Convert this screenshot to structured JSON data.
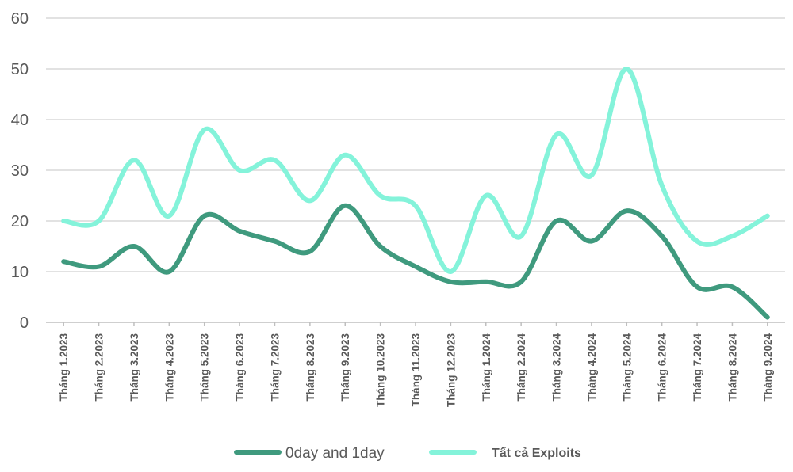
{
  "chart_data": {
    "type": "line",
    "title": "",
    "xlabel": "",
    "ylabel": "",
    "ylim": [
      0,
      60
    ],
    "yticks": [
      0,
      10,
      20,
      30,
      40,
      50,
      60
    ],
    "grid": true,
    "legend_position": "bottom",
    "smooth": true,
    "categories": [
      "Tháng 1.2023",
      "Tháng 2.2023",
      "Tháng 3.2023",
      "Tháng 4.2023",
      "Tháng 5.2023",
      "Tháng 6.2023",
      "Tháng 7.2023",
      "Tháng 8.2023",
      "Tháng 9.2023",
      "Tháng 10.2023",
      "Tháng 11.2023",
      "Tháng 12.2023",
      "Tháng 1.2024",
      "Tháng 2.2024",
      "Tháng 3.2024",
      "Tháng 4.2024",
      "Tháng 5.2024",
      "Tháng 6.2024",
      "Tháng 7.2024",
      "Tháng 8.2024",
      "Tháng 9.2024"
    ],
    "series": [
      {
        "name": "0day and 1day",
        "color": "#3f9a7e",
        "values": [
          12,
          11,
          15,
          10,
          21,
          18,
          16,
          14,
          23,
          15,
          11,
          8,
          8,
          8,
          20,
          16,
          22,
          17,
          7,
          7,
          1
        ]
      },
      {
        "name": "Tất cả Exploits",
        "color": "#84f3da",
        "values": [
          20,
          20,
          32,
          21,
          38,
          30,
          32,
          24,
          33,
          25,
          23,
          10,
          25,
          17,
          37,
          29,
          50,
          27,
          16,
          17,
          21
        ]
      }
    ]
  }
}
